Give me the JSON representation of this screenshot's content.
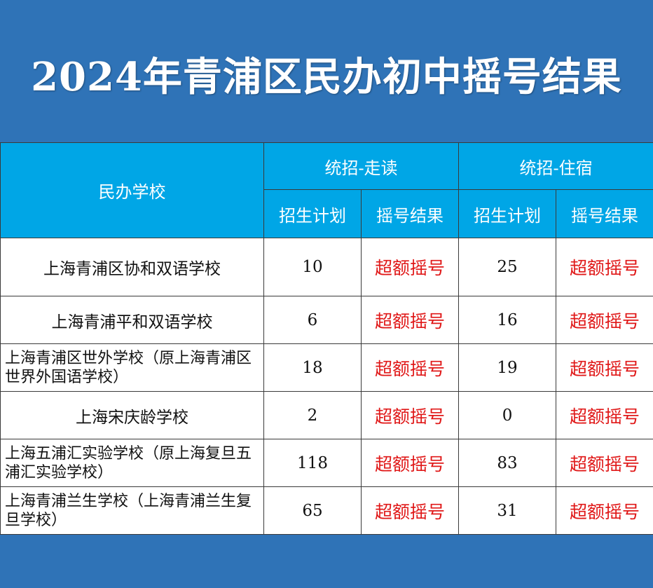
{
  "title": "2024年青浦区民办初中摇号结果",
  "table": {
    "school_header": "民办学校",
    "group_headers": [
      "统招-走读",
      "统招-住宿"
    ],
    "sub_headers": [
      "招生计划",
      "摇号结果",
      "招生计划",
      "摇号结果"
    ],
    "rows": [
      {
        "school": "上海青浦区协和双语学校",
        "day_plan": "10",
        "day_result": "超额摇号",
        "board_plan": "25",
        "board_result": "超额摇号"
      },
      {
        "school": "上海青浦平和双语学校",
        "day_plan": "6",
        "day_result": "超额摇号",
        "board_plan": "16",
        "board_result": "超额摇号"
      },
      {
        "school": "上海青浦区世外学校（原上海青浦区世界外国语学校）",
        "day_plan": "18",
        "day_result": "超额摇号",
        "board_plan": "19",
        "board_result": "超额摇号"
      },
      {
        "school": "上海宋庆龄学校",
        "day_plan": "2",
        "day_result": "超额摇号",
        "board_plan": "0",
        "board_result": "超额摇号"
      },
      {
        "school": "上海五浦汇实验学校（原上海复旦五浦汇实验学校）",
        "day_plan": "118",
        "day_result": "超额摇号",
        "board_plan": "83",
        "board_result": "超额摇号"
      },
      {
        "school": "上海青浦兰生学校（上海青浦兰生复旦学校）",
        "day_plan": "65",
        "day_result": "超额摇号",
        "board_plan": "31",
        "board_result": "超额摇号"
      }
    ]
  },
  "colors": {
    "banner_bg": "#2f73b7",
    "header_bg": "#00a6e6",
    "result_text": "#e01818"
  }
}
